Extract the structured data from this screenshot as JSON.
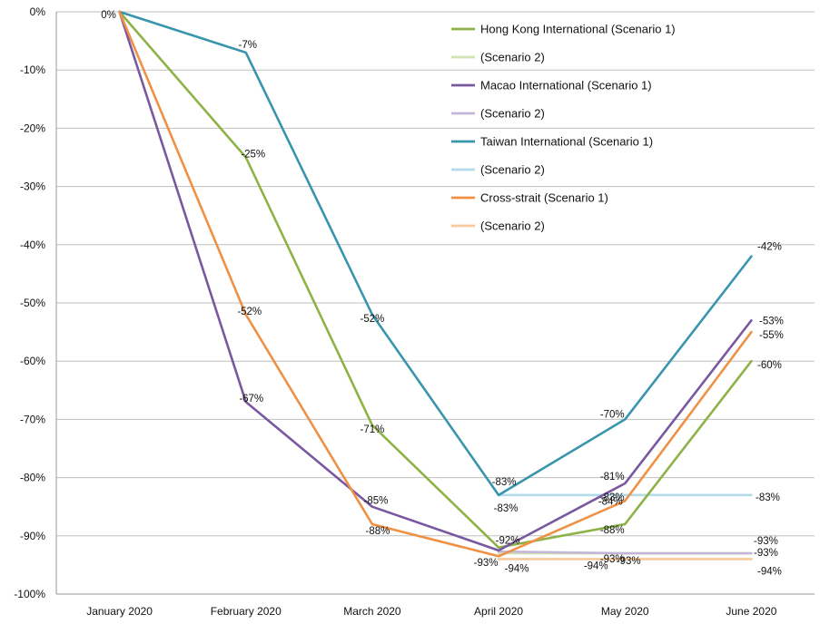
{
  "chart_data": {
    "type": "line",
    "categories": [
      "January 2020",
      "February 2020",
      "March 2020",
      "April 2020",
      "May 2020",
      "June 2020"
    ],
    "ylim": [
      -100,
      0
    ],
    "yticks": [
      0,
      -10,
      -20,
      -30,
      -40,
      -50,
      -60,
      -70,
      -80,
      -90,
      -100
    ],
    "ytick_labels": [
      "0%",
      "-10%",
      "-20%",
      "-30%",
      "-40%",
      "-50%",
      "-60%",
      "-70%",
      "-80%",
      "-90%",
      "-100%"
    ],
    "grid": "horizontal",
    "legend_position": "top-right",
    "title": "",
    "xlabel": "",
    "ylabel": "",
    "series": [
      {
        "name": "Hong Kong International (Scenario 1)",
        "color": "#8db347",
        "values": [
          0,
          -25,
          -71,
          -92,
          -88,
          -60
        ]
      },
      {
        "name": "(Scenario 2)",
        "color": "#d3e3b4",
        "values": [
          null,
          null,
          null,
          -93,
          -93,
          -93
        ]
      },
      {
        "name": "Macao International (Scenario 1)",
        "color": "#7a58a0",
        "values": [
          0,
          -67,
          -85,
          -92.5,
          -81,
          -53
        ]
      },
      {
        "name": "(Scenario 2)",
        "color": "#c3b6d6",
        "values": [
          null,
          null,
          null,
          -92.7,
          -93,
          -93
        ]
      },
      {
        "name": "Taiwan International (Scenario 1)",
        "color": "#3895ad",
        "values": [
          0,
          -7,
          -52,
          -83,
          -70,
          -42
        ]
      },
      {
        "name": "(Scenario 2)",
        "color": "#b3dbe9",
        "values": [
          null,
          null,
          null,
          -83,
          -83,
          -83
        ]
      },
      {
        "name": "Cross-strait (Scenario 1)",
        "color": "#ef9145",
        "values": [
          0,
          -52,
          -88,
          -93.5,
          -84,
          -55
        ]
      },
      {
        "name": "(Scenario 2)",
        "color": "#f8c99c",
        "values": [
          null,
          null,
          null,
          -94,
          -94,
          -94
        ]
      }
    ],
    "data_labels": [
      {
        "text": "0%",
        "x": "January 2020",
        "y": 0
      },
      {
        "text": "-7%",
        "x": "February 2020",
        "y": -7
      },
      {
        "text": "-25%",
        "x": "February 2020",
        "y": -25
      },
      {
        "text": "-52%",
        "x": "February 2020",
        "y": -52
      },
      {
        "text": "-67%",
        "x": "February 2020",
        "y": -67
      },
      {
        "text": "-52%",
        "x": "March 2020",
        "y": -52
      },
      {
        "text": "-71%",
        "x": "March 2020",
        "y": -71
      },
      {
        "text": "-85%",
        "x": "March 2020",
        "y": -85
      },
      {
        "text": "-88%",
        "x": "March 2020",
        "y": -88
      },
      {
        "text": "-83%",
        "x": "April 2020",
        "y": -83
      },
      {
        "text": "-83%",
        "x": "April 2020",
        "y": -83
      },
      {
        "text": "-92%",
        "x": "April 2020",
        "y": -92
      },
      {
        "text": "-93%",
        "x": "April 2020",
        "y": -93
      },
      {
        "text": "-94%",
        "x": "April 2020",
        "y": -94
      },
      {
        "text": "-70%",
        "x": "May 2020",
        "y": -70
      },
      {
        "text": "-81%",
        "x": "May 2020",
        "y": -81
      },
      {
        "text": "-83%",
        "x": "May 2020",
        "y": -83
      },
      {
        "text": "-84%",
        "x": "May 2020",
        "y": -84
      },
      {
        "text": "-88%",
        "x": "May 2020",
        "y": -88
      },
      {
        "text": "-93%",
        "x": "May 2020",
        "y": -93
      },
      {
        "text": "-94%",
        "x": "May 2020",
        "y": -94
      },
      {
        "text": "-93%",
        "x": "May 2020",
        "y": -93
      },
      {
        "text": "-42%",
        "x": "June 2020",
        "y": -42
      },
      {
        "text": "-53%",
        "x": "June 2020",
        "y": -53
      },
      {
        "text": "-55%",
        "x": "June 2020",
        "y": -55
      },
      {
        "text": "-60%",
        "x": "June 2020",
        "y": -60
      },
      {
        "text": "-83%",
        "x": "June 2020",
        "y": -83
      },
      {
        "text": "-93%",
        "x": "June 2020",
        "y": -93
      },
      {
        "text": "-93%",
        "x": "June 2020",
        "y": -93
      },
      {
        "text": "-94%",
        "x": "June 2020",
        "y": -94
      }
    ]
  }
}
